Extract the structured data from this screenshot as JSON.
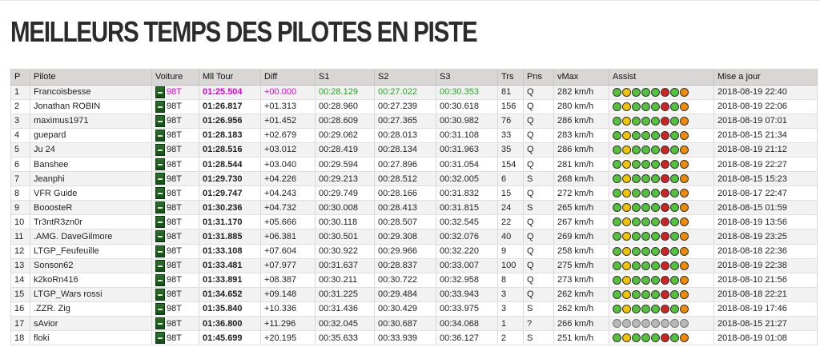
{
  "page": {
    "title": "MEILLEURS TEMPS DES PILOTES EN PISTE"
  },
  "table": {
    "headers": [
      "P",
      "Pilote",
      "Voiture",
      "Mll Tour",
      "Diff",
      "S1",
      "S2",
      "S3",
      "Trs",
      "Pns",
      "vMax",
      "Assist",
      "Mise a jour"
    ],
    "rows": [
      {
        "p": "1",
        "pilote": "Francoisbesse",
        "voiture": "98T",
        "tour": "01:25.504",
        "diff": "+00.000",
        "s1": "00:28.129",
        "s2": "00:27.022",
        "s3": "00:30.353",
        "trs": "81",
        "pns": "Q",
        "vmax": "282 km/h",
        "assist": "full",
        "maj": "2018-08-19 22:40"
      },
      {
        "p": "2",
        "pilote": "Jonathan ROBIN",
        "voiture": "98T",
        "tour": "01:26.817",
        "diff": "+01.313",
        "s1": "00:28.960",
        "s2": "00:27.239",
        "s3": "00:30.618",
        "trs": "156",
        "pns": "Q",
        "vmax": "280 km/h",
        "assist": "full",
        "maj": "2018-08-19 22:06"
      },
      {
        "p": "3",
        "pilote": "maximus1971",
        "voiture": "98T",
        "tour": "01:26.956",
        "diff": "+01.452",
        "s1": "00:28.609",
        "s2": "00:27.365",
        "s3": "00:30.982",
        "trs": "76",
        "pns": "Q",
        "vmax": "286 km/h",
        "assist": "full",
        "maj": "2018-08-19 07:01"
      },
      {
        "p": "4",
        "pilote": "guepard",
        "voiture": "98T",
        "tour": "01:28.183",
        "diff": "+02.679",
        "s1": "00:29.062",
        "s2": "00:28.013",
        "s3": "00:31.108",
        "trs": "33",
        "pns": "Q",
        "vmax": "283 km/h",
        "assist": "full",
        "maj": "2018-08-15 21:34"
      },
      {
        "p": "5",
        "pilote": "Ju 24",
        "voiture": "98T",
        "tour": "01:28.516",
        "diff": "+03.012",
        "s1": "00:28.419",
        "s2": "00:28.134",
        "s3": "00:31.963",
        "trs": "35",
        "pns": "Q",
        "vmax": "286 km/h",
        "assist": "full",
        "maj": "2018-08-19 21:12"
      },
      {
        "p": "6",
        "pilote": "Banshee",
        "voiture": "98T",
        "tour": "01:28.544",
        "diff": "+03.040",
        "s1": "00:29.594",
        "s2": "00:27.896",
        "s3": "00:31.054",
        "trs": "154",
        "pns": "Q",
        "vmax": "281 km/h",
        "assist": "full",
        "maj": "2018-08-19 22:27"
      },
      {
        "p": "7",
        "pilote": "Jeanphi",
        "voiture": "98T",
        "tour": "01:29.730",
        "diff": "+04.226",
        "s1": "00:29.213",
        "s2": "00:28.512",
        "s3": "00:32.005",
        "trs": "6",
        "pns": "S",
        "vmax": "268 km/h",
        "assist": "full",
        "maj": "2018-08-15 15:23"
      },
      {
        "p": "8",
        "pilote": "VFR Guide",
        "voiture": "98T",
        "tour": "01:29.747",
        "diff": "+04.243",
        "s1": "00:29.749",
        "s2": "00:28.166",
        "s3": "00:31.832",
        "trs": "15",
        "pns": "Q",
        "vmax": "272 km/h",
        "assist": "full",
        "maj": "2018-08-17 22:47"
      },
      {
        "p": "9",
        "pilote": "BooosteR",
        "voiture": "98T",
        "tour": "01:30.236",
        "diff": "+04.732",
        "s1": "00:30.008",
        "s2": "00:28.413",
        "s3": "00:31.815",
        "trs": "24",
        "pns": "S",
        "vmax": "265 km/h",
        "assist": "full",
        "maj": "2018-08-15 01:59"
      },
      {
        "p": "10",
        "pilote": "Tr3ntR3zn0r",
        "voiture": "98T",
        "tour": "01:31.170",
        "diff": "+05.666",
        "s1": "00:30.118",
        "s2": "00:28.507",
        "s3": "00:32.545",
        "trs": "22",
        "pns": "Q",
        "vmax": "267 km/h",
        "assist": "full",
        "maj": "2018-08-19 13:56"
      },
      {
        "p": "11",
        "pilote": ".AMG. DaveGilmore",
        "voiture": "98T",
        "tour": "01:31.885",
        "diff": "+06.381",
        "s1": "00:30.501",
        "s2": "00:29.308",
        "s3": "00:32.076",
        "trs": "40",
        "pns": "Q",
        "vmax": "269 km/h",
        "assist": "full",
        "maj": "2018-08-19 23:25"
      },
      {
        "p": "12",
        "pilote": "LTGP_Feufeuille",
        "voiture": "98T",
        "tour": "01:33.108",
        "diff": "+07.604",
        "s1": "00:30.922",
        "s2": "00:29.966",
        "s3": "00:32.220",
        "trs": "9",
        "pns": "Q",
        "vmax": "258 km/h",
        "assist": "full",
        "maj": "2018-08-18 22:36"
      },
      {
        "p": "13",
        "pilote": "Sonson62",
        "voiture": "98T",
        "tour": "01:33.481",
        "diff": "+07.977",
        "s1": "00:31.637",
        "s2": "00:28.837",
        "s3": "00:33.007",
        "trs": "100",
        "pns": "Q",
        "vmax": "275 km/h",
        "assist": "full",
        "maj": "2018-08-19 22:38"
      },
      {
        "p": "14",
        "pilote": "k2koRn416",
        "voiture": "98T",
        "tour": "01:33.891",
        "diff": "+08.387",
        "s1": "00:30.211",
        "s2": "00:30.722",
        "s3": "00:32.958",
        "trs": "8",
        "pns": "Q",
        "vmax": "273 km/h",
        "assist": "full",
        "maj": "2018-08-10 21:56"
      },
      {
        "p": "15",
        "pilote": "LTGP_Wars rossi",
        "voiture": "98T",
        "tour": "01:34.652",
        "diff": "+09.148",
        "s1": "00:31.225",
        "s2": "00:29.484",
        "s3": "00:33.943",
        "trs": "3",
        "pns": "Q",
        "vmax": "262 km/h",
        "assist": "full",
        "maj": "2018-08-18 22:21"
      },
      {
        "p": "16",
        "pilote": ".ZZR. Zig",
        "voiture": "98T",
        "tour": "01:35.840",
        "diff": "+10.336",
        "s1": "00:31.436",
        "s2": "00:30.429",
        "s3": "00:33.975",
        "trs": "3",
        "pns": "S",
        "vmax": "262 km/h",
        "assist": "full",
        "maj": "2018-08-19 17:46"
      },
      {
        "p": "17",
        "pilote": "sAvior",
        "voiture": "98T",
        "tour": "01:36.800",
        "diff": "+11.296",
        "s1": "00:32.045",
        "s2": "00:30.687",
        "s3": "00:34.068",
        "trs": "1",
        "pns": "?",
        "vmax": "266 km/h",
        "assist": "unknown",
        "maj": "2018-08-15 21:27"
      },
      {
        "p": "18",
        "pilote": "floki",
        "voiture": "98T",
        "tour": "01:45.699",
        "diff": "+20.195",
        "s1": "00:35.633",
        "s2": "00:33.939",
        "s3": "00:36.127",
        "trs": "2",
        "pns": "S",
        "vmax": "251 km/h",
        "assist": "full",
        "maj": "2018-08-19 01:08"
      }
    ],
    "assist_icons": {
      "full": [
        "g",
        "y",
        "g",
        "g",
        "g",
        "r",
        "g",
        "o"
      ],
      "unknown": [
        "k",
        "k",
        "k",
        "k",
        "k",
        "k",
        "k",
        "k"
      ]
    },
    "assist_icon_names": [
      "steering-help-icon",
      "braking-help-icon",
      "abs-icon",
      "traction-control-icon",
      "stability-icon",
      "auto-clutch-icon",
      "auto-shift-icon",
      "racing-line-icon"
    ]
  }
}
